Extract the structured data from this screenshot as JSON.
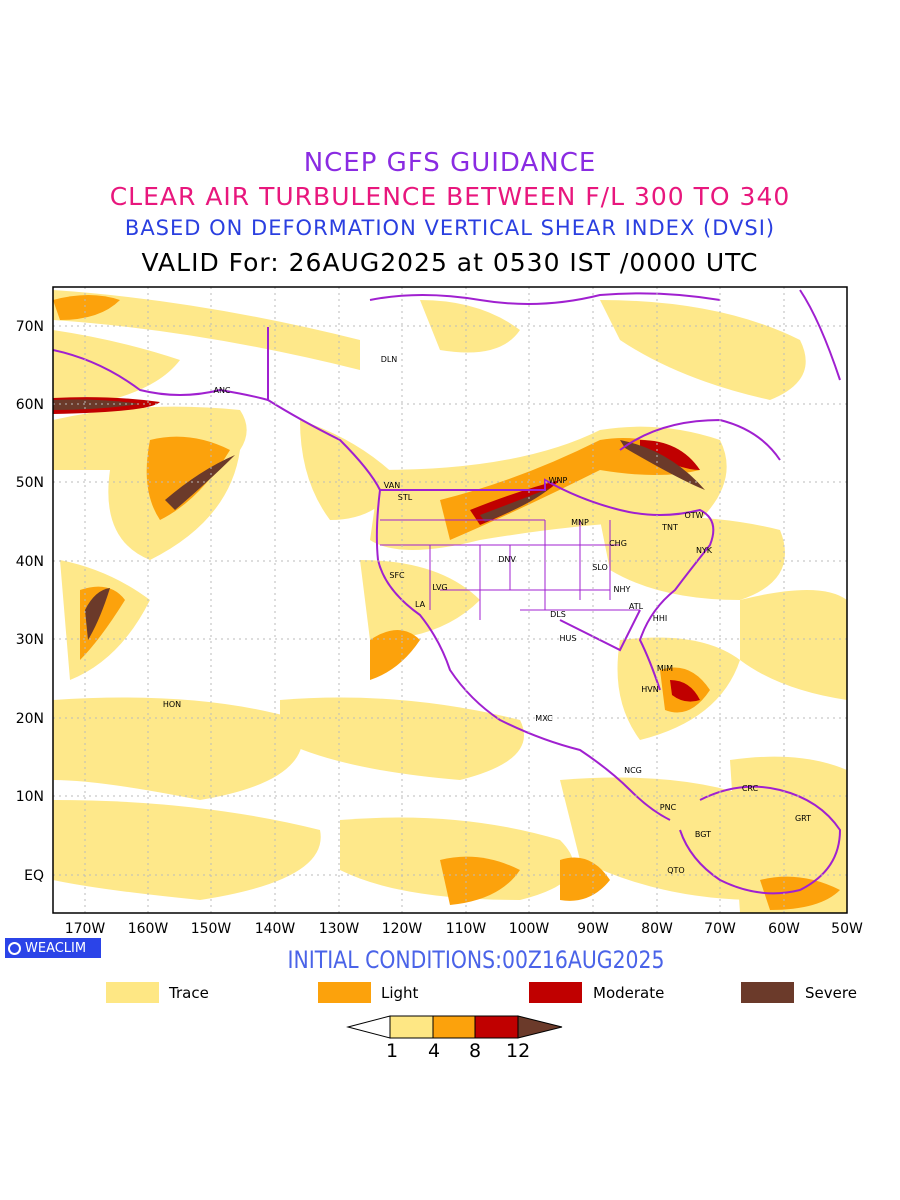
{
  "titles": {
    "line1": "NCEP GFS GUIDANCE",
    "line2": "CLEAR AIR TURBULENCE BETWEEN F/L 300 TO 340",
    "line3": "BASED ON DEFORMATION VERTICAL SHEAR INDEX (DVSI)",
    "line4": "VALID For: 26AUG2025 at 0530 IST /0000 UTC"
  },
  "map": {
    "lat_labels": [
      "70N",
      "60N",
      "50N",
      "40N",
      "30N",
      "20N",
      "10N",
      "EQ"
    ],
    "lon_labels": [
      "170W",
      "160W",
      "150W",
      "140W",
      "130W",
      "120W",
      "110W",
      "100W",
      "90W",
      "80W",
      "70W",
      "60W",
      "50W"
    ],
    "stations": [
      "DLN",
      "ANC",
      "VAN",
      "STL",
      "WNP",
      "MNP",
      "TNT",
      "OTW",
      "NYK",
      "CHG",
      "DNV",
      "SFC",
      "LVG",
      "LA",
      "SLO",
      "NHY",
      "ATL",
      "HHI",
      "DLS",
      "HUS",
      "MIM",
      "HVN",
      "HON",
      "MXC",
      "NCG",
      "CRC",
      "GRT",
      "PNC",
      "BGT",
      "QTO"
    ]
  },
  "branding": {
    "badge": "WEACLIM"
  },
  "initial_conditions": "INITIAL CONDITIONS:00Z16AUG2025",
  "legend": [
    {
      "label": "Trace",
      "color": "#fee784"
    },
    {
      "label": "Light",
      "color": "#fca20c"
    },
    {
      "label": "Moderate",
      "color": "#c00000"
    },
    {
      "label": "Severe",
      "color": "#6b3a2a"
    }
  ],
  "colorbar": {
    "ticks": [
      "1",
      "4",
      "8",
      "12"
    ]
  },
  "colors": {
    "border": "#a020d0",
    "grid": "#bbbbbb"
  }
}
